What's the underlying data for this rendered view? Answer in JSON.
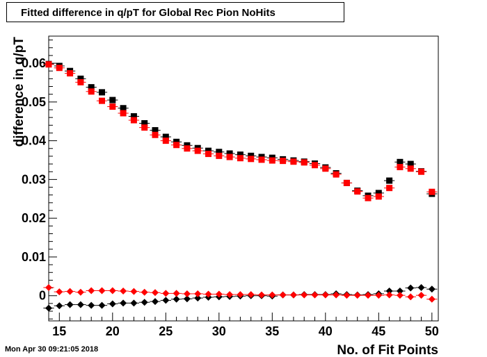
{
  "title": "Fitted difference in q/pT for Global Rec Pion NoHits",
  "timestamp": "Mon Apr 30 09:21:05 2018",
  "chart_data": {
    "type": "scatter",
    "xlabel": "No. of Fit Points",
    "ylabel": "difference in q/pT",
    "xlim": [
      14,
      50.6
    ],
    "ylim": [
      -0.0065,
      0.067
    ],
    "x_ticks": [
      15,
      20,
      25,
      30,
      35,
      40,
      45,
      50
    ],
    "y_ticks": [
      0,
      0.01,
      0.02,
      0.03,
      0.04,
      0.05,
      0.06
    ],
    "x_tick_labels": [
      "15",
      "20",
      "25",
      "30",
      "35",
      "40",
      "45",
      "50"
    ],
    "y_tick_labels": [
      "0",
      "0.01",
      "0.02",
      "0.03",
      "0.04",
      "0.05",
      "0.06"
    ],
    "grid": false,
    "x": [
      14,
      15,
      16,
      17,
      18,
      19,
      20,
      21,
      22,
      23,
      24,
      25,
      26,
      27,
      28,
      29,
      30,
      31,
      32,
      33,
      34,
      35,
      36,
      37,
      38,
      39,
      40,
      41,
      42,
      43,
      44,
      45,
      46,
      47,
      48,
      49,
      50
    ],
    "series": [
      {
        "marker": "square",
        "color": "#000000",
        "values": [
          0.0598,
          0.0593,
          0.058,
          0.056,
          0.0538,
          0.0525,
          0.0505,
          0.0484,
          0.0463,
          0.0445,
          0.0427,
          0.041,
          0.0397,
          0.0388,
          0.0381,
          0.0374,
          0.0371,
          0.0367,
          0.0364,
          0.0361,
          0.0358,
          0.0356,
          0.0352,
          0.0349,
          0.0346,
          0.0341,
          0.0331,
          0.0316,
          0.0291,
          0.0271,
          0.0258,
          0.0265,
          0.0297,
          0.0345,
          0.034,
          0.0321,
          0.0263
        ]
      },
      {
        "marker": "square",
        "color": "#ff0000",
        "values": [
          0.0597,
          0.0588,
          0.0574,
          0.0551,
          0.0527,
          0.0503,
          0.0488,
          0.0471,
          0.0453,
          0.0434,
          0.0415,
          0.04,
          0.0389,
          0.038,
          0.0374,
          0.0366,
          0.0361,
          0.0358,
          0.0355,
          0.0353,
          0.0351,
          0.0349,
          0.0348,
          0.0346,
          0.0344,
          0.0337,
          0.0328,
          0.0313,
          0.0291,
          0.0269,
          0.0252,
          0.0256,
          0.0278,
          0.0332,
          0.0328,
          0.032,
          0.0268
        ]
      },
      {
        "marker": "diamond",
        "color": "#000000",
        "values": [
          -0.0032,
          -0.0026,
          -0.0023,
          -0.0023,
          -0.0025,
          -0.0025,
          -0.0021,
          -0.0019,
          -0.0019,
          -0.0017,
          -0.0015,
          -0.0012,
          -0.0009,
          -0.0008,
          -0.0006,
          -0.0004,
          -0.0003,
          -0.0002,
          -0.0001,
          0.0,
          0.0,
          -0.0001,
          0.0002,
          0.0002,
          0.0003,
          0.0003,
          0.0003,
          0.0005,
          0.0003,
          0.0002,
          0.0003,
          0.0005,
          0.0012,
          0.0012,
          0.002,
          0.0021,
          0.0017
        ]
      },
      {
        "marker": "diamond",
        "color": "#ff0000",
        "values": [
          0.0021,
          0.001,
          0.0011,
          0.0009,
          0.0013,
          0.0013,
          0.0013,
          0.0012,
          0.0011,
          0.0009,
          0.0008,
          0.0006,
          0.0006,
          0.0005,
          0.0005,
          0.0004,
          0.0004,
          0.0003,
          0.0003,
          0.0003,
          0.0002,
          0.0002,
          0.0002,
          0.0002,
          0.0002,
          0.0002,
          0.0002,
          0.0002,
          0.0001,
          0.0001,
          0.0001,
          0.0001,
          0.0002,
          0.0001,
          -0.0003,
          0.0001,
          -0.0009
        ]
      }
    ]
  }
}
